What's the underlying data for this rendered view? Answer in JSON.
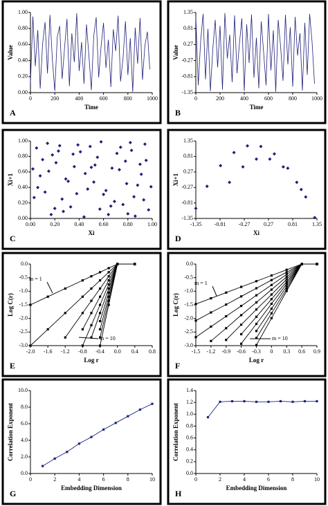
{
  "chart_data": [
    {
      "type": "line",
      "label": "A",
      "xlabel": "Time",
      "ylabel": "Value",
      "color": "#1f1f7a",
      "markers": false,
      "x": [
        0,
        20,
        40,
        60,
        80,
        100,
        120,
        140,
        160,
        180,
        200,
        220,
        240,
        260,
        280,
        300,
        320,
        340,
        360,
        380,
        400,
        420,
        440,
        460,
        480,
        500,
        520,
        540,
        560,
        580,
        600,
        620,
        640,
        660,
        680,
        700,
        720,
        740,
        760,
        780,
        800,
        820,
        840,
        860,
        880,
        900,
        920,
        940,
        960,
        980
      ],
      "series": [
        {
          "values": [
            0.12,
            0.95,
            0.33,
            0.78,
            0.05,
            0.61,
            0.88,
            0.24,
            0.97,
            0.41,
            0.02,
            0.69,
            0.83,
            0.17,
            0.56,
            0.92,
            0.08,
            0.74,
            0.38,
            0.99,
            0.27,
            0.63,
            0.11,
            0.85,
            0.46,
            0.03,
            0.71,
            0.94,
            0.19,
            0.58,
            0.87,
            0.31,
            0.66,
            0.07,
            0.79,
            0.52,
            0.96,
            0.14,
            0.43,
            0.89,
            0.22,
            0.68,
            0.01,
            0.81,
            0.36,
            0.93,
            0.16,
            0.59,
            0.76,
            0.29
          ]
        }
      ],
      "xlim": [
        0,
        1000
      ],
      "xticks": [
        0,
        200,
        400,
        600,
        800,
        1000
      ],
      "ylim": [
        0,
        1
      ],
      "yticks": [
        {
          "value": 0,
          "label": "0.00"
        },
        {
          "value": 0.2,
          "label": "0.20"
        },
        {
          "value": 0.4,
          "label": "0.40"
        },
        {
          "value": 0.6,
          "label": "0.60"
        },
        {
          "value": 0.8,
          "label": "0.80"
        },
        {
          "value": 1,
          "label": "1.00"
        }
      ]
    },
    {
      "type": "line",
      "label": "B",
      "xlabel": "Time",
      "ylabel": "Value",
      "color": "#1f1f7a",
      "markers": false,
      "x": [
        0,
        20,
        40,
        60,
        80,
        100,
        120,
        140,
        160,
        180,
        200,
        220,
        240,
        260,
        280,
        300,
        320,
        340,
        360,
        380,
        400,
        420,
        440,
        460,
        480,
        500,
        520,
        540,
        560,
        580,
        600,
        620,
        640,
        660,
        680,
        700,
        720,
        740,
        760,
        780,
        800,
        820,
        840,
        860,
        880,
        900,
        920,
        940,
        960,
        980
      ],
      "series": [
        {
          "values": [
            1.2,
            -1.1,
            0.4,
            1.3,
            -0.9,
            0.8,
            -1.3,
            0.1,
            1.1,
            -0.5,
            0.9,
            -1.25,
            1.33,
            -0.2,
            0.6,
            -1.0,
            1.25,
            -0.7,
            0.3,
            1.15,
            -1.3,
            0.95,
            -0.35,
            1.28,
            -0.85,
            0.5,
            -1.2,
            1.05,
            0.0,
            -1.1,
            1.3,
            -0.6,
            0.75,
            -1.32,
            1.1,
            0.2,
            -0.95,
            1.27,
            -0.4,
            0.85,
            -1.15,
            1.2,
            -0.1,
            0.65,
            -1.28,
            1.0,
            -0.75,
            1.3,
            0.35,
            -1.05
          ]
        }
      ],
      "xlim": [
        0,
        1000
      ],
      "xticks": [
        0,
        200,
        400,
        600,
        800,
        1000
      ],
      "ylim": [
        -1.35,
        1.35
      ],
      "yticks": [
        -1.35,
        -0.81,
        -0.27,
        0.27,
        0.81,
        1.35
      ]
    },
    {
      "type": "scatter",
      "label": "C",
      "xlabel": "Xi",
      "ylabel": "Xi+1",
      "color": "#1f1f7a",
      "x": [
        0.05,
        0.12,
        0.21,
        0.33,
        0.41,
        0.52,
        0.64,
        0.73,
        0.85,
        0.94,
        0.08,
        0.18,
        0.27,
        0.36,
        0.47,
        0.58,
        0.69,
        0.78,
        0.88,
        0.97,
        0.03,
        0.15,
        0.24,
        0.31,
        0.44,
        0.55,
        0.62,
        0.76,
        0.83,
        0.91,
        0.1,
        0.2,
        0.29,
        0.39,
        0.5,
        0.6,
        0.71,
        0.8,
        0.9,
        0.99,
        0.06,
        0.14,
        0.26,
        0.35,
        0.45,
        0.57,
        0.67,
        0.74,
        0.86,
        0.95,
        0.02,
        0.17,
        0.23,
        0.38,
        0.49,
        0.53,
        0.66,
        0.79,
        0.82,
        0.93
      ],
      "series": [
        {
          "values": [
            0.91,
            0.34,
            0.72,
            0.15,
            0.86,
            0.47,
            0.05,
            0.63,
            0.28,
            0.96,
            0.55,
            0.82,
            0.09,
            0.67,
            0.38,
            0.99,
            0.22,
            0.74,
            0.43,
            0.11,
            0.27,
            0.61,
            0.94,
            0.48,
            0.02,
            0.79,
            0.36,
            0.18,
            0.88,
            0.57,
            0.76,
            0.13,
            0.51,
            0.95,
            0.66,
            0.31,
            0.84,
            0.06,
            0.7,
            0.41,
            0.4,
            0.97,
            0.25,
            0.83,
            0.58,
            0.12,
            0.65,
            0.92,
            0.03,
            0.75,
            0.64,
            0.05,
            0.87,
            0.32,
            0.93,
            0.69,
            0.16,
            0.45,
            0.98,
            0.24
          ]
        }
      ],
      "xlim": [
        0,
        1
      ],
      "xticks": [
        {
          "value": 0,
          "label": "0.00"
        },
        {
          "value": 0.2,
          "label": "0.20"
        },
        {
          "value": 0.4,
          "label": "0.40"
        },
        {
          "value": 0.6,
          "label": "0.60"
        },
        {
          "value": 0.8,
          "label": "0.80"
        },
        {
          "value": 1,
          "label": "1.00"
        }
      ],
      "ylim": [
        0,
        1
      ],
      "yticks": [
        {
          "value": 0,
          "label": "0.00"
        },
        {
          "value": 0.2,
          "label": "0.20"
        },
        {
          "value": 0.4,
          "label": "0.40"
        },
        {
          "value": 0.6,
          "label": "0.60"
        },
        {
          "value": 0.8,
          "label": "0.80"
        },
        {
          "value": 1,
          "label": "1.00"
        }
      ]
    },
    {
      "type": "scatter",
      "label": "D",
      "xlabel": "Xi",
      "ylabel": "Xi+1",
      "color": "#1f1f7a",
      "x": [
        -1.35,
        -1.1,
        -0.8,
        -0.5,
        -0.2,
        0.1,
        0.4,
        0.7,
        1.0,
        1.3,
        -0.6,
        -0.3,
        0.0,
        0.3,
        0.6,
        0.9,
        1.1
      ],
      "series": [
        {
          "values": [
            -1.0,
            -0.23,
            0.49,
            0.95,
            1.18,
            1.16,
            0.9,
            0.4,
            -0.34,
            -1.32,
            -0.09,
            0.45,
            0.72,
            0.72,
            0.45,
            -0.09,
            -0.6
          ]
        }
      ],
      "xlim": [
        -1.35,
        1.35
      ],
      "xticks": [
        -1.35,
        -0.81,
        -0.27,
        0.27,
        0.81,
        1.35
      ],
      "ylim": [
        -1.35,
        1.35
      ],
      "yticks": [
        -1.35,
        -0.81,
        -0.27,
        0.27,
        0.81,
        1.35
      ]
    },
    {
      "type": "line",
      "label": "E",
      "xlabel": "Log r",
      "ylabel": "Log C(r)",
      "color": "#000000",
      "markers": true,
      "annotations": [
        "m = 1",
        "m = 10"
      ],
      "x": [
        -2.0,
        -1.6,
        -1.2,
        -0.8,
        -0.6,
        -0.4,
        -0.2,
        0,
        0.4
      ],
      "series": [
        {
          "values": [
            -1.5,
            -1.2,
            -0.9,
            -0.6,
            -0.45,
            -0.3,
            -0.15,
            0,
            0
          ]
        },
        {
          "values": [
            -3.0,
            -2.4,
            -1.8,
            -1.2,
            -0.9,
            -0.6,
            -0.3,
            0,
            0
          ]
        },
        {
          "values": [
            null,
            null,
            -2.7,
            -1.8,
            -1.35,
            -0.9,
            -0.45,
            0,
            0
          ]
        },
        {
          "values": [
            null,
            null,
            null,
            -2.4,
            -1.8,
            -1.2,
            -0.6,
            0,
            0
          ]
        },
        {
          "values": [
            null,
            null,
            null,
            -3.0,
            -2.25,
            -1.5,
            -0.75,
            0,
            0
          ]
        },
        {
          "values": [
            null,
            null,
            null,
            null,
            -2.7,
            -1.8,
            -0.9,
            0,
            0
          ]
        },
        {
          "values": [
            null,
            null,
            null,
            null,
            null,
            -2.1,
            -1.05,
            0,
            0
          ]
        },
        {
          "values": [
            null,
            null,
            null,
            null,
            null,
            -2.4,
            -1.2,
            0,
            0
          ]
        },
        {
          "values": [
            null,
            null,
            null,
            null,
            null,
            -2.7,
            -1.35,
            0,
            0
          ]
        },
        {
          "values": [
            null,
            null,
            null,
            null,
            null,
            -3.0,
            -1.5,
            0,
            0
          ]
        }
      ],
      "xlim": [
        -2,
        0.8
      ],
      "xticks": [
        {
          "value": -2,
          "label": "-2.0"
        },
        -1.6,
        -1.2,
        -0.8,
        -0.4,
        {
          "value": 0,
          "label": "0.0"
        },
        0.4,
        0.8
      ],
      "ylim": [
        -3,
        0
      ],
      "yticks": [
        {
          "value": -3,
          "label": "-3.0"
        },
        -2.5,
        {
          "value": -2,
          "label": "-2.0"
        },
        -1.5,
        {
          "value": -1,
          "label": "-1.0"
        },
        -0.5,
        {
          "value": 0,
          "label": "0.0"
        }
      ]
    },
    {
      "type": "line",
      "label": "F",
      "xlabel": "Log r",
      "ylabel": "Log C(r)",
      "color": "#000000",
      "markers": true,
      "annotations": [
        "m = 1",
        "m = 10"
      ],
      "x": [
        -1.5,
        -1.2,
        -0.9,
        -0.6,
        -0.3,
        0,
        0.3,
        0.6,
        0.9
      ],
      "series": [
        {
          "values": [
            -1.47,
            -1.26,
            -1.05,
            -0.84,
            -0.63,
            -0.42,
            -0.21,
            0,
            0
          ]
        },
        {
          "values": [
            -2.08,
            -1.78,
            -1.49,
            -1.19,
            -0.89,
            -0.59,
            -0.3,
            0,
            0
          ]
        },
        {
          "values": [
            -2.69,
            -2.3,
            -1.92,
            -1.54,
            -1.15,
            -0.77,
            -0.38,
            0,
            0
          ]
        },
        {
          "values": [
            null,
            -2.83,
            -2.36,
            -1.88,
            -1.41,
            -0.94,
            -0.47,
            0,
            0
          ]
        },
        {
          "values": [
            null,
            null,
            -2.79,
            -2.23,
            -1.67,
            -1.12,
            -0.56,
            0,
            0
          ]
        },
        {
          "values": [
            null,
            null,
            null,
            -2.58,
            -1.94,
            -1.29,
            -0.65,
            0,
            0
          ]
        },
        {
          "values": [
            null,
            null,
            null,
            -2.93,
            -2.2,
            -1.46,
            -0.73,
            0,
            0
          ]
        },
        {
          "values": [
            null,
            null,
            null,
            null,
            -2.46,
            -1.64,
            -0.82,
            0,
            0
          ]
        },
        {
          "values": [
            null,
            null,
            null,
            null,
            -2.72,
            -1.81,
            -0.91,
            0,
            0
          ]
        },
        {
          "values": [
            null,
            null,
            null,
            null,
            -2.98,
            -1.99,
            -0.99,
            0,
            0
          ]
        }
      ],
      "xlim": [
        -1.5,
        0.9
      ],
      "xticks": [
        -1.5,
        -1.2,
        -0.9,
        -0.6,
        -0.3,
        0,
        0.3,
        0.6,
        0.9
      ],
      "ylim": [
        -3,
        0
      ],
      "yticks": [
        {
          "value": -3,
          "label": "-3.0"
        },
        -2.5,
        {
          "value": -2,
          "label": "-2.0"
        },
        -1.5,
        {
          "value": -1,
          "label": "-1.0"
        },
        -0.5,
        {
          "value": 0,
          "label": "0.0"
        }
      ]
    },
    {
      "type": "line",
      "label": "G",
      "xlabel": "Embedding Dimension",
      "ylabel": "Correlation Exponent",
      "color": "#1a237e",
      "markers": true,
      "x": [
        1,
        2,
        3,
        4,
        5,
        6,
        7,
        8,
        9,
        10
      ],
      "series": [
        {
          "values": [
            0.9,
            1.8,
            2.6,
            3.6,
            4.4,
            5.3,
            6.1,
            6.9,
            7.7,
            8.4
          ]
        }
      ],
      "xlim": [
        0,
        10
      ],
      "xticks": [
        0,
        2,
        4,
        6,
        8,
        10
      ],
      "ylim": [
        0,
        10
      ],
      "yticks": [
        {
          "value": 0,
          "label": "0.0"
        },
        {
          "value": 2,
          "label": "2.0"
        },
        {
          "value": 4,
          "label": "4.0"
        },
        {
          "value": 6,
          "label": "6.0"
        },
        {
          "value": 8,
          "label": "8.0"
        },
        {
          "value": 10,
          "label": "10.0"
        }
      ]
    },
    {
      "type": "line",
      "label": "H",
      "xlabel": "Embedding Dimension",
      "ylabel": "Correlation Exponent",
      "color": "#1a237e",
      "markers": true,
      "x": [
        1,
        2,
        3,
        4,
        5,
        6,
        7,
        8,
        9,
        10
      ],
      "series": [
        {
          "values": [
            0.95,
            1.21,
            1.22,
            1.22,
            1.21,
            1.21,
            1.22,
            1.21,
            1.22,
            1.22
          ]
        }
      ],
      "xlim": [
        0,
        10
      ],
      "xticks": [
        0,
        2,
        4,
        6,
        8,
        10
      ],
      "ylim": [
        0,
        1.4
      ],
      "yticks": [
        {
          "value": 0,
          "label": "0.0"
        },
        0.2,
        0.4,
        0.6,
        0.8,
        {
          "value": 1,
          "label": "1.0"
        },
        1.2,
        1.4
      ]
    }
  ]
}
